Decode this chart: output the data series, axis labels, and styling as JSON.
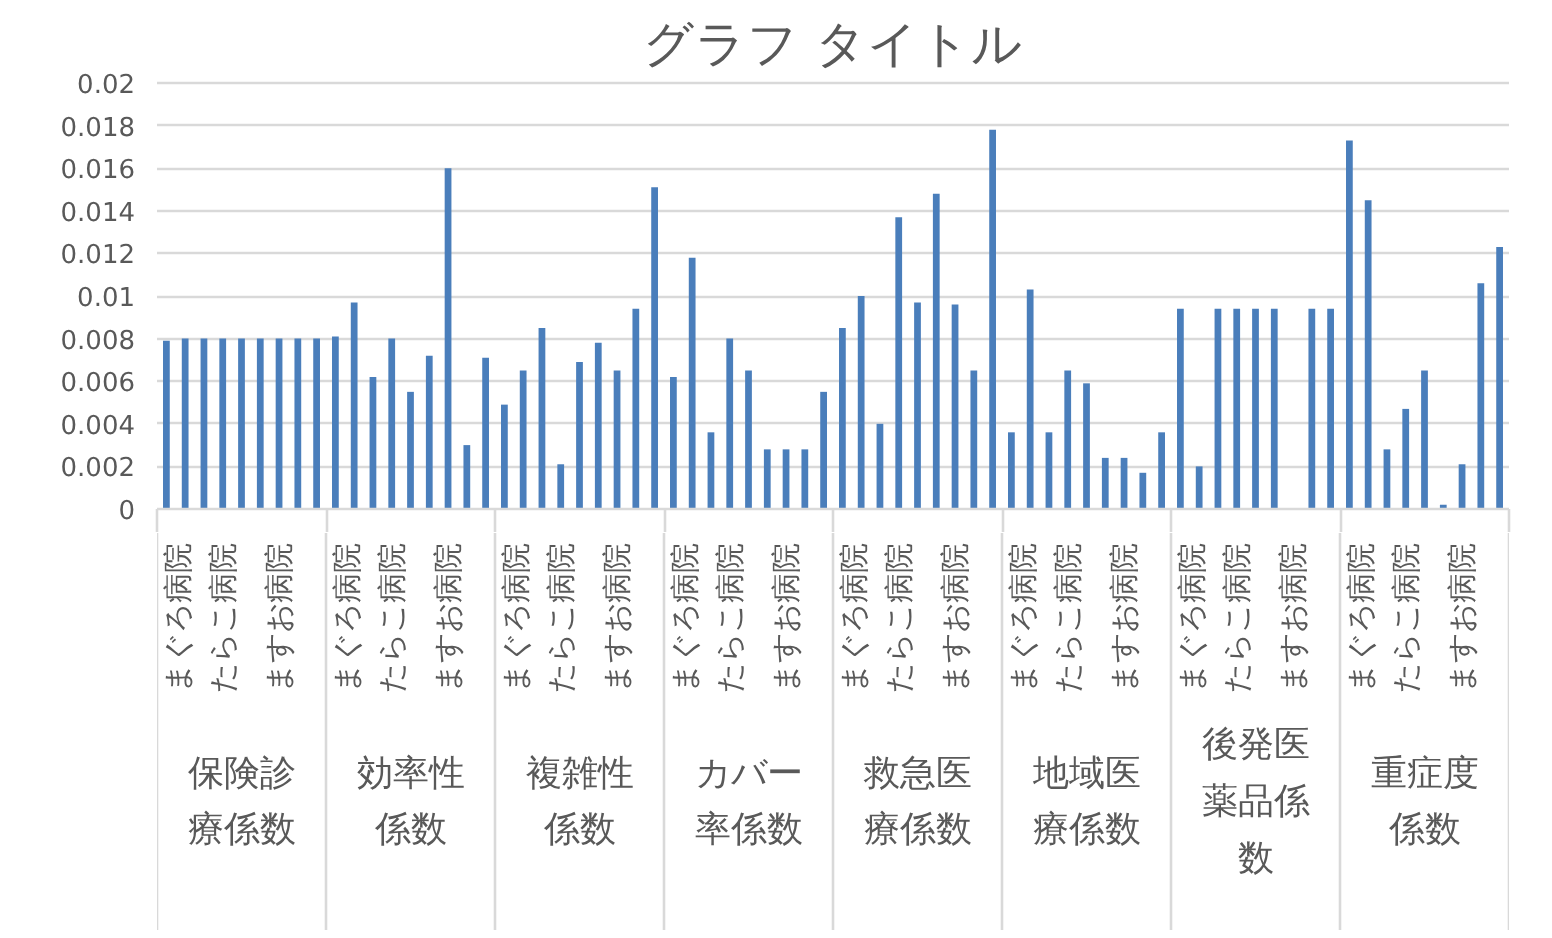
{
  "chart_data": {
    "type": "bar",
    "title": "グラフ タイトル",
    "categories": [
      "保険診療係数",
      "効率性係数",
      "複雑性係数",
      "カバー率係数",
      "救急医療係数",
      "地域医療係数",
      "後発医薬品係数",
      "重症度係数"
    ],
    "series": [
      {
        "name": "まぐろ病院",
        "color": "#4a7ebb",
        "values": [
          0.0079,
          0.0081,
          0.0049,
          0.0062,
          0.0085,
          0.0036,
          0.0094,
          0.0173
        ]
      },
      {
        "color": "#4a7ebb",
        "values": [
          0.008,
          0.0097,
          0.0065,
          0.0118,
          0.01,
          0.0103,
          0.002,
          0.0145
        ]
      },
      {
        "color": "#4a7ebb",
        "values": [
          0.008,
          0.0062,
          0.0085,
          0.0036,
          0.004,
          0.0036,
          0.0094,
          0.0028
        ]
      },
      {
        "name": "たらこ病院",
        "color": "#4a7ebb",
        "values": [
          0.008,
          0.008,
          0.0021,
          0.008,
          0.0137,
          0.0065,
          0.0094,
          0.0047
        ]
      },
      {
        "color": "#4a7ebb",
        "values": [
          0.008,
          0.0055,
          0.0069,
          0.0065,
          0.0097,
          0.0059,
          0.0094,
          0.0065
        ]
      },
      {
        "color": "#4a7ebb",
        "values": [
          0.008,
          0.0072,
          0.0078,
          0.0028,
          0.0148,
          0.0024,
          0.0094,
          0.0002
        ]
      },
      {
        "name": "ますお病院",
        "color": "#4a7ebb",
        "values": [
          0.008,
          0.016,
          0.0065,
          0.0028,
          0.0096,
          0.0024,
          null,
          0.0021
        ]
      },
      {
        "color": "#4a7ebb",
        "values": [
          0.008,
          0.003,
          0.0094,
          0.0028,
          0.0065,
          0.0017,
          0.0094,
          0.0106
        ]
      },
      {
        "color": "#4a7ebb",
        "values": [
          0.008,
          0.0071,
          0.0151,
          0.0055,
          0.0178,
          0.0036,
          0.0094,
          0.0123
        ]
      }
    ],
    "ylim": [
      0,
      0.02
    ],
    "yticks": [
      0,
      0.002,
      0.004,
      0.006,
      0.008,
      0.01,
      0.012,
      0.014,
      0.016,
      0.018,
      0.02
    ],
    "grid": "y"
  }
}
